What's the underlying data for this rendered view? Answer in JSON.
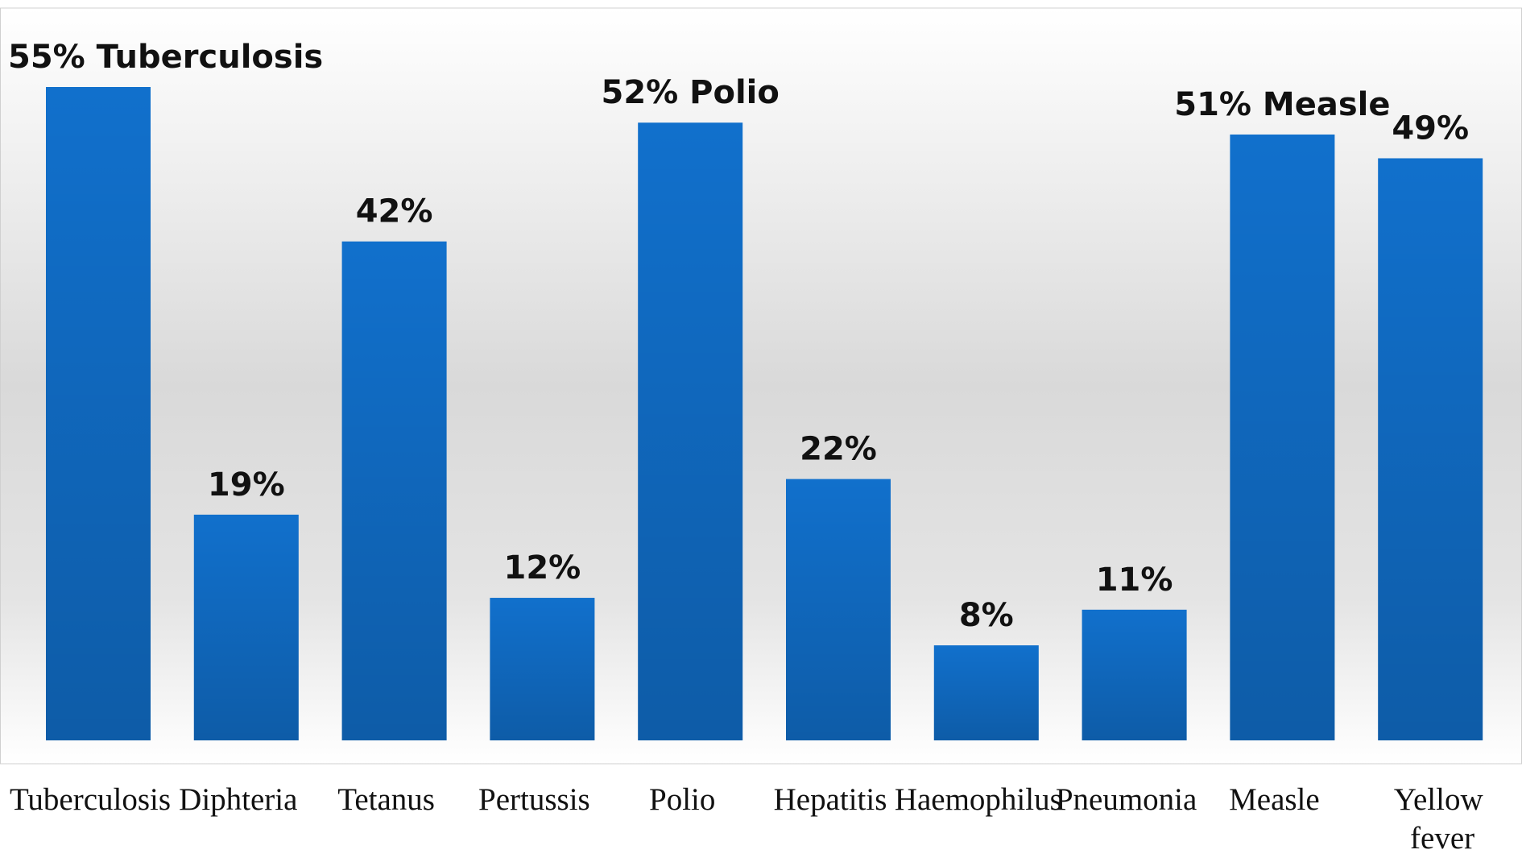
{
  "chart_data": {
    "type": "bar",
    "categories": [
      "Tuberculosis",
      "Diphteria",
      "Tetanus",
      "Pertussis",
      "Polio",
      "Hepatitis",
      "Haemophilus",
      "Pneumonia",
      "Measle",
      "Yellow fever"
    ],
    "values": [
      55,
      19,
      42,
      12,
      52,
      22,
      8,
      11,
      51,
      49
    ],
    "value_labels": [
      "55% Tuberculosis",
      "19%",
      "42%",
      "12%",
      "52% Polio",
      "22%",
      "8%",
      "11%",
      "51% Measle",
      "49%"
    ],
    "color": "#1170cc"
  }
}
